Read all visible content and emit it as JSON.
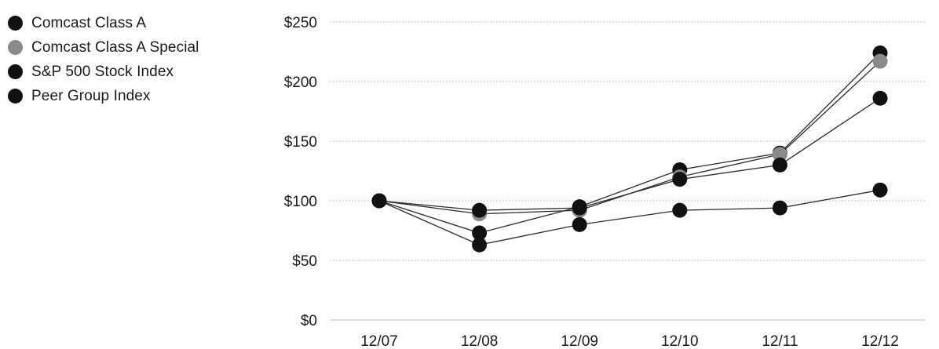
{
  "chart_data": {
    "type": "line",
    "title": "",
    "xlabel": "",
    "ylabel": "",
    "categories": [
      "12/07",
      "12/08",
      "12/09",
      "12/10",
      "12/11",
      "12/12"
    ],
    "y_ticks": [
      "$0",
      "$50",
      "$100",
      "$150",
      "$200",
      "$250"
    ],
    "y_tick_values": [
      0,
      50,
      100,
      150,
      200,
      250
    ],
    "ylim": [
      0,
      250
    ],
    "grid": true,
    "legend_position": "left",
    "series": [
      {
        "name": "Comcast Class A",
        "color": "#111111",
        "values": [
          100,
          73,
          95,
          126,
          140,
          224
        ]
      },
      {
        "name": "Comcast Class A Special",
        "color": "#8a8a8a",
        "values": [
          100,
          89,
          92,
          120,
          139,
          217
        ]
      },
      {
        "name": "S&P 500 Stock Index",
        "color": "#111111",
        "values": [
          100,
          63,
          80,
          92,
          94,
          109
        ]
      },
      {
        "name": "Peer Group Index",
        "color": "#111111",
        "values": [
          100,
          92,
          94,
          118,
          130,
          186
        ]
      }
    ]
  }
}
